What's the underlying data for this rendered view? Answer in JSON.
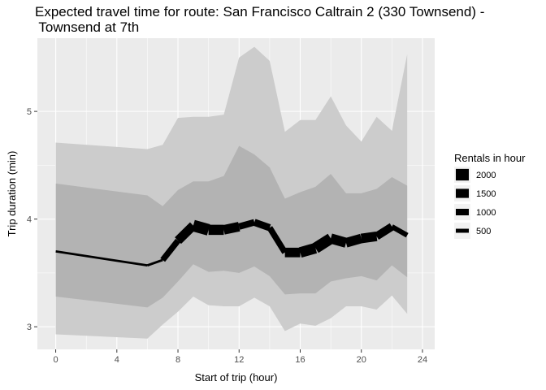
{
  "chart_data": {
    "type": "line",
    "title": "Expected travel time for route: San Francisco Caltrain 2 (330 Townsend) -\n Townsend at 7th",
    "xlabel": "Start of trip (hour)",
    "ylabel": "Trip duration (min)",
    "xlim": [
      -1.2,
      24.8
    ],
    "ylim": [
      2.79,
      5.68
    ],
    "xticks": [
      0,
      4,
      8,
      12,
      16,
      20,
      24
    ],
    "yticks": [
      3,
      4,
      5
    ],
    "grid": true,
    "legend": {
      "title": "Rentals in hour",
      "position": "right",
      "items": [
        {
          "label": "2000",
          "size": 2000
        },
        {
          "label": "1500",
          "size": 1500
        },
        {
          "label": "1000",
          "size": 1000
        },
        {
          "label": "500",
          "size": 500
        }
      ]
    },
    "colors": {
      "panel": "#ebebeb",
      "grid": "#ffffff",
      "outer_band": "#cccccc",
      "inner_band": "#b3b3b3",
      "line": "#000000"
    },
    "x": [
      0,
      6,
      7,
      8,
      9,
      10,
      11,
      12,
      13,
      14,
      15,
      16,
      17,
      18,
      19,
      20,
      21,
      22,
      23
    ],
    "series": [
      {
        "kind": "band",
        "lower": [
          2.93,
          2.89,
          3.02,
          3.14,
          3.28,
          3.2,
          3.19,
          3.19,
          3.27,
          3.19,
          2.96,
          3.03,
          3.01,
          3.08,
          3.19,
          3.19,
          3.16,
          3.29,
          3.12
        ],
        "upper": [
          4.71,
          4.65,
          4.69,
          4.94,
          4.95,
          4.95,
          4.97,
          5.5,
          5.6,
          5.47,
          4.81,
          4.92,
          4.92,
          5.14,
          4.87,
          4.72,
          4.95,
          4.82,
          5.53
        ]
      },
      {
        "kind": "band",
        "lower": [
          3.28,
          3.18,
          3.27,
          3.42,
          3.58,
          3.51,
          3.52,
          3.5,
          3.56,
          3.47,
          3.3,
          3.31,
          3.31,
          3.42,
          3.45,
          3.47,
          3.43,
          3.57,
          3.46
        ],
        "upper": [
          4.33,
          4.22,
          4.12,
          4.27,
          4.35,
          4.35,
          4.4,
          4.68,
          4.6,
          4.48,
          4.19,
          4.25,
          4.3,
          4.42,
          4.24,
          4.24,
          4.28,
          4.39,
          4.31
        ]
      },
      {
        "kind": "line",
        "values": [
          3.7,
          3.57,
          3.62,
          3.8,
          3.94,
          3.9,
          3.9,
          3.93,
          3.97,
          3.92,
          3.69,
          3.69,
          3.73,
          3.82,
          3.78,
          3.82,
          3.84,
          3.93,
          3.85
        ],
        "sizes": [
          150,
          180,
          900,
          1500,
          2000,
          1700,
          1600,
          1000,
          1100,
          900,
          1600,
          1800,
          1900,
          1700,
          1600,
          1600,
          1300,
          700,
          500
        ]
      }
    ]
  }
}
